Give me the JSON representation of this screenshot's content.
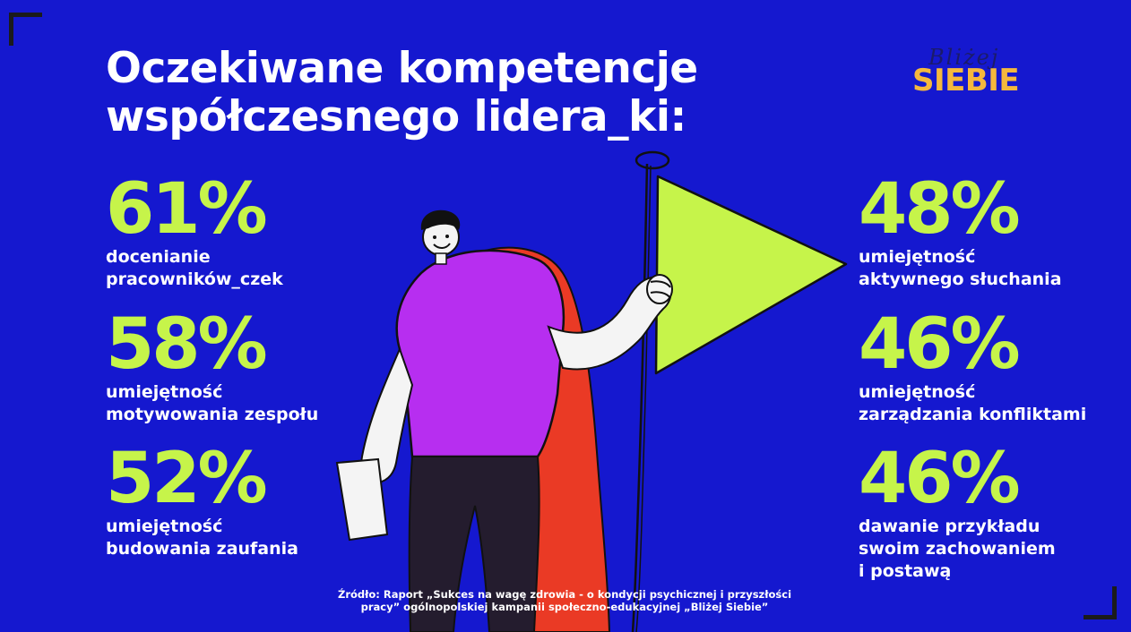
{
  "title": "Oczekiwane kompetencje współczesnego lidera_ki:",
  "logo": {
    "script_text": "Bliżej",
    "word": "SIEBIE"
  },
  "stats": [
    {
      "value": "61%",
      "line1": "docenianie",
      "line2": "pracowników_czek",
      "line3": ""
    },
    {
      "value": "58%",
      "line1": "umiejętność",
      "line2": "motywowania zespołu",
      "line3": ""
    },
    {
      "value": "52%",
      "line1": "umiejętność",
      "line2": "budowania zaufania",
      "line3": ""
    },
    {
      "value": "48%",
      "line1": "umiejętność",
      "line2": "aktywnego słuchania",
      "line3": ""
    },
    {
      "value": "46%",
      "line1": "umiejętność",
      "line2": "zarządzania konfliktami",
      "line3": ""
    },
    {
      "value": "46%",
      "line1": "dawanie przykładu",
      "line2": "swoim zachowaniem",
      "line3": "i postawą"
    }
  ],
  "source": {
    "line1": "Źródło: Raport „Sukces na wagę zdrowia - o kondycji psychicznej i przyszłości",
    "line2": "pracy” ogólnopolskiej kampanii społeczno-edukacyjnej „Bliżej Siebie”"
  },
  "colors": {
    "background": "#1518cf",
    "accent": "#c6f44a",
    "logo": "#f5b83d",
    "shirt": "#b72ef0",
    "cape": "#ea3a25"
  }
}
